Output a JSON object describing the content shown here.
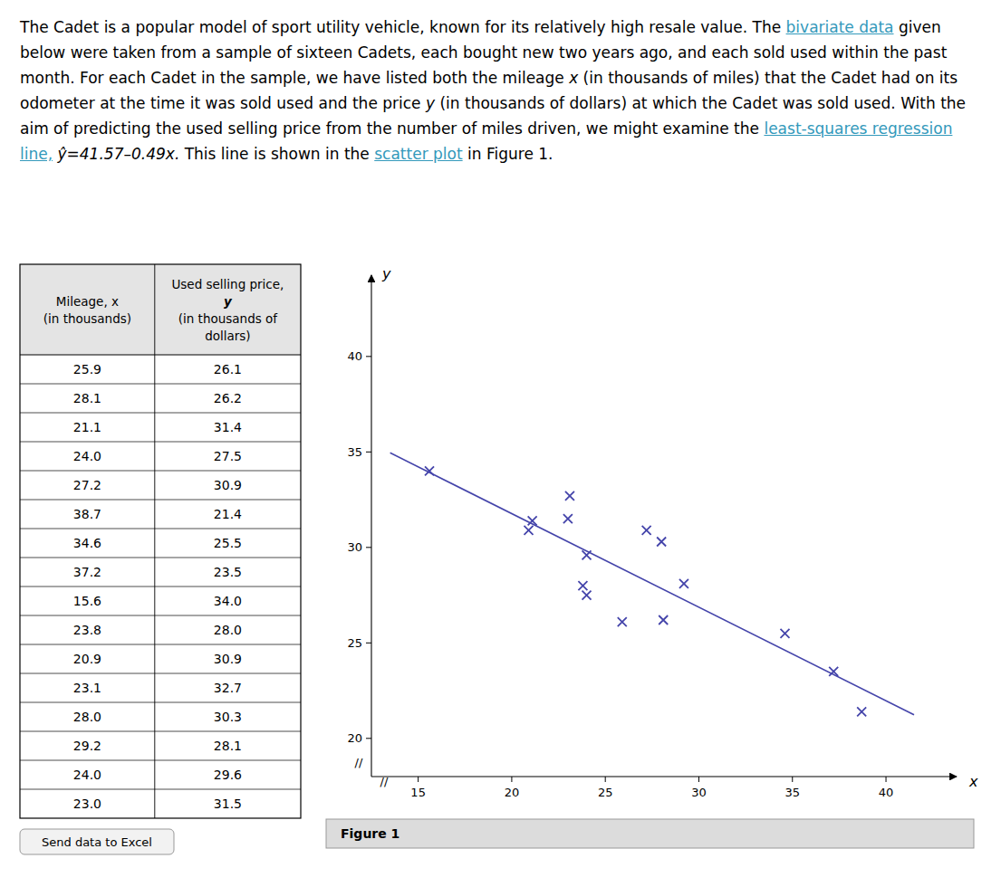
{
  "chart_data": {
    "type": "scatter",
    "paragraph": [
      {
        "text": "The Cadet is a popular model of sport utility vehicle, known for its relatively high resale value. The "
      },
      {
        "text": "bivariate data",
        "color": "#3399bb"
      },
      {
        "text": " given below were taken from a sample of sixteen Cadets, each bought new two years ago, and each sold used within the past month. For each Cadet in the sample, we have listed both the mileage "
      },
      {
        "text": "x"
      },
      {
        "text": " (in thousands of miles) that the Cadet had on its odometer at the time it was sold used and the price "
      },
      {
        "text": "y"
      },
      {
        "text": " (in thousands of dollars) at which the Cadet was sold used. With the aim of predicting the used selling price from the number of miles driven, we might examine the "
      },
      {
        "text": "least-squares regression line,",
        "color": "#3399bb"
      },
      {
        "text": " ŷ=41.57–0.49x."
      },
      {
        "text": " This line is shown in the "
      },
      {
        "text": "scatter plot",
        "color": "#3399bb"
      },
      {
        "text": " in Figure 1."
      }
    ],
    "table_headers": [
      [
        "Mileage, x",
        "(in thousands)"
      ],
      [
        "Used selling price,",
        "y",
        "(in thousands of",
        "dollars)"
      ]
    ],
    "button": "Send data to Excel",
    "figure_label": "Figure 1",
    "x_label": "x",
    "y_label": "y",
    "axis_break": "//",
    "series": [
      {
        "type": "scatter",
        "marker": "x",
        "color": "#4444aa",
        "x": [
          25.9,
          28.1,
          21.1,
          24.0,
          27.2,
          38.7,
          34.6,
          37.2,
          15.6,
          23.8,
          20.9,
          23.1,
          28.0,
          29.2,
          24.0,
          23.0
        ],
        "x_labels": [
          "25.9",
          "28.1",
          "21.1",
          "24.0",
          "27.2",
          "38.7",
          "34.6",
          "37.2",
          "15.6",
          "23.8",
          "20.9",
          "23.1",
          "28.0",
          "29.2",
          "24.0",
          "23.0"
        ],
        "values": [
          26.1,
          26.2,
          31.4,
          27.5,
          30.9,
          21.4,
          25.5,
          23.5,
          34.0,
          28.0,
          30.9,
          32.7,
          30.3,
          28.1,
          29.6,
          31.5
        ],
        "value_labels": [
          "26.1",
          "26.2",
          "31.4",
          "27.5",
          "30.9",
          "21.4",
          "25.5",
          "23.5",
          "34.0",
          "28.0",
          "30.9",
          "32.7",
          "30.3",
          "28.1",
          "29.6",
          "31.5"
        ]
      },
      {
        "type": "line",
        "color": "#4444aa",
        "x": [
          13.5,
          41.5
        ],
        "values": [
          34.955,
          21.235
        ]
      }
    ],
    "xlim": [
      12.5,
      43
    ],
    "ylim": [
      18,
      43.5
    ],
    "xticks": [
      15,
      20,
      25,
      30,
      35,
      40
    ],
    "yticks": [
      20,
      25,
      30,
      35,
      40
    ],
    "grid": false
  }
}
